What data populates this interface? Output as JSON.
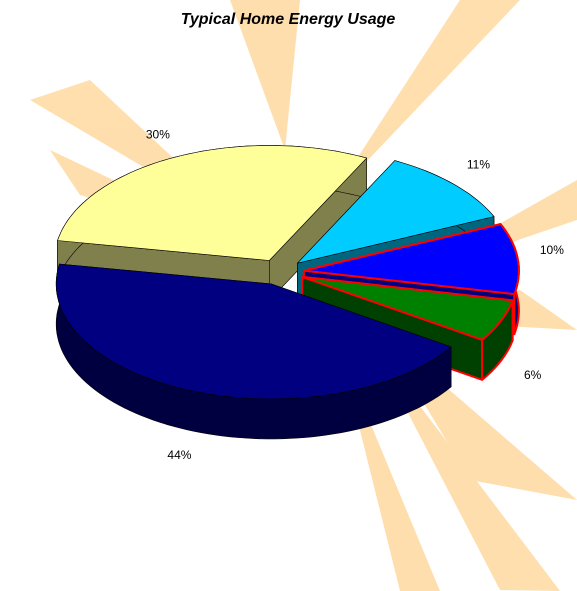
{
  "chart_data": {
    "type": "pie3d",
    "title": "Typical Home Energy Usage",
    "values": [
      30,
      11,
      10,
      6,
      44
    ],
    "value_labels": [
      "30%",
      "11%",
      "10%",
      "6%",
      "44%"
    ],
    "colors": [
      "#ffff99",
      "#00ccff",
      "#0000ff",
      "#008000",
      "#000080"
    ],
    "highlighted": [
      false,
      false,
      true,
      true,
      false
    ],
    "highlight_color": "#ff0000"
  }
}
